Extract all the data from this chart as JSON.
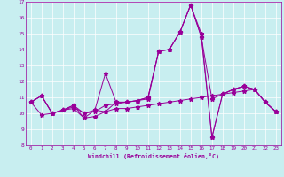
{
  "xlabel": "Windchill (Refroidissement éolien,°C)",
  "xlim": [
    -0.5,
    23.5
  ],
  "ylim": [
    8,
    17
  ],
  "xticks": [
    0,
    1,
    2,
    3,
    4,
    5,
    6,
    7,
    8,
    9,
    10,
    11,
    12,
    13,
    14,
    15,
    16,
    17,
    18,
    19,
    20,
    21,
    22,
    23
  ],
  "yticks": [
    8,
    9,
    10,
    11,
    12,
    13,
    14,
    15,
    16,
    17
  ],
  "line_color": "#990099",
  "bg_color": "#c8eef0",
  "lines": [
    {
      "x": [
        0,
        1,
        2,
        3,
        4,
        5,
        6,
        7,
        8,
        9,
        10,
        11,
        12,
        13,
        14,
        15,
        16,
        17,
        18,
        19,
        20,
        21,
        22,
        23
      ],
      "y": [
        10.7,
        9.9,
        10.0,
        10.2,
        10.3,
        9.7,
        9.8,
        10.1,
        10.3,
        10.3,
        10.4,
        10.5,
        10.6,
        10.7,
        10.8,
        10.9,
        11.0,
        11.1,
        11.2,
        11.3,
        11.4,
        11.5,
        10.7,
        10.1
      ]
    },
    {
      "x": [
        0,
        1,
        2,
        3,
        4,
        5,
        6,
        7,
        8,
        9,
        10,
        11,
        12,
        13,
        14,
        15,
        16,
        17,
        18,
        19,
        20,
        21,
        22,
        23
      ],
      "y": [
        10.7,
        11.1,
        10.0,
        10.2,
        10.4,
        10.0,
        10.1,
        10.5,
        10.6,
        10.7,
        10.8,
        10.9,
        13.9,
        14.0,
        15.1,
        16.8,
        15.0,
        8.5,
        11.2,
        11.5,
        11.7,
        11.5,
        10.7,
        10.1
      ]
    },
    {
      "x": [
        0,
        1,
        2,
        3,
        4,
        5,
        6,
        7,
        8,
        9,
        10,
        11,
        12,
        13,
        14,
        15,
        16,
        17,
        18,
        19,
        20,
        21,
        22,
        23
      ],
      "y": [
        10.7,
        11.1,
        10.0,
        10.2,
        10.5,
        10.0,
        10.2,
        12.5,
        10.7,
        10.7,
        10.8,
        11.0,
        13.9,
        14.0,
        15.1,
        16.8,
        14.8,
        10.9,
        11.2,
        11.5,
        11.7,
        11.5,
        10.7,
        10.1
      ]
    },
    {
      "x": [
        0,
        1,
        2,
        3,
        4,
        5,
        6,
        7,
        8,
        9,
        10,
        11,
        12,
        13,
        14,
        15,
        16,
        17,
        18,
        19,
        20,
        21,
        22,
        23
      ],
      "y": [
        10.7,
        11.1,
        10.0,
        10.2,
        10.5,
        9.7,
        10.2,
        10.1,
        10.7,
        10.7,
        10.8,
        11.0,
        13.9,
        14.0,
        15.1,
        16.8,
        14.8,
        8.5,
        11.2,
        11.5,
        11.7,
        11.5,
        10.7,
        10.1
      ]
    }
  ]
}
